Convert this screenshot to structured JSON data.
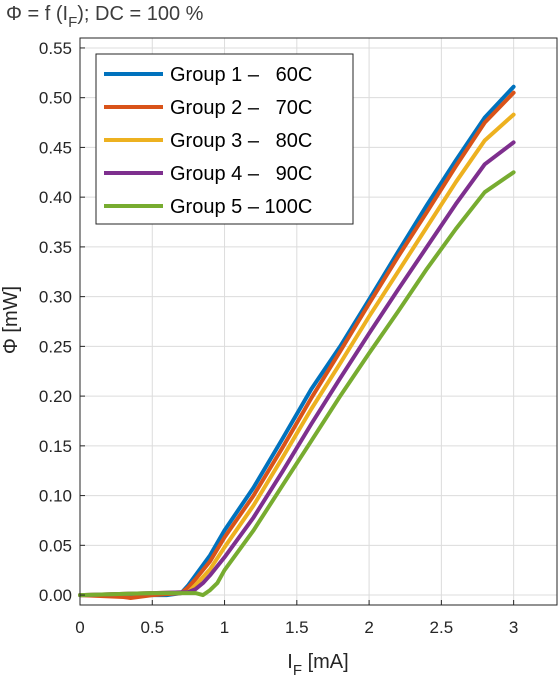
{
  "chart_data": {
    "type": "line",
    "title": {
      "main": "Φ = f (I",
      "sub": "F",
      "rest": "); DC = 100 %"
    },
    "xlabel": {
      "main": "I",
      "sub": "F",
      "rest": " [mA]"
    },
    "ylabel": "Φ [mW]",
    "xlim": [
      0,
      3.3
    ],
    "ylim": [
      -0.01,
      0.56
    ],
    "xticks": [
      0,
      0.5,
      1,
      1.5,
      2,
      2.5,
      3
    ],
    "xtick_labels": [
      "0",
      "0.5",
      "1",
      "1.5",
      "2",
      "2.5",
      "3"
    ],
    "yticks": [
      0,
      0.05,
      0.1,
      0.15,
      0.2,
      0.25,
      0.3,
      0.35,
      0.4,
      0.45,
      0.5,
      0.55
    ],
    "ytick_labels": [
      "0.00",
      "0.05",
      "0.10",
      "0.15",
      "0.20",
      "0.25",
      "0.30",
      "0.35",
      "0.40",
      "0.45",
      "0.50",
      "0.55"
    ],
    "grid": true,
    "legend_position": "top-left",
    "series": [
      {
        "name": "Group 1 –   60C",
        "color": "#0072BD",
        "x": [
          0,
          0.3,
          0.6,
          0.7,
          0.75,
          0.8,
          0.9,
          1.0,
          1.2,
          1.4,
          1.6,
          1.8,
          2.0,
          2.2,
          2.4,
          2.6,
          2.8,
          3.0
        ],
        "y": [
          0,
          0,
          0,
          0.002,
          0.01,
          0.02,
          0.04,
          0.065,
          0.108,
          0.157,
          0.207,
          0.25,
          0.297,
          0.345,
          0.392,
          0.437,
          0.48,
          0.511
        ]
      },
      {
        "name": "Group 2 –   70C",
        "color": "#D95319",
        "x": [
          0,
          0.3,
          0.35,
          0.5,
          0.7,
          0.75,
          0.8,
          0.9,
          1.0,
          1.2,
          1.4,
          1.6,
          1.8,
          2.0,
          2.2,
          2.4,
          2.6,
          2.8,
          3.0
        ],
        "y": [
          0,
          -0.002,
          -0.003,
          0,
          0.002,
          0.008,
          0.016,
          0.034,
          0.058,
          0.1,
          0.148,
          0.198,
          0.245,
          0.293,
          0.34,
          0.385,
          0.431,
          0.475,
          0.505
        ]
      },
      {
        "name": "Group 3 –   80C",
        "color": "#EDB120",
        "x": [
          0,
          0.5,
          0.75,
          0.8,
          0.9,
          1.0,
          1.2,
          1.4,
          1.6,
          1.8,
          2.0,
          2.2,
          2.4,
          2.6,
          2.8,
          3.0
        ],
        "y": [
          0,
          0.002,
          0.003,
          0.01,
          0.026,
          0.048,
          0.09,
          0.138,
          0.187,
          0.233,
          0.28,
          0.325,
          0.37,
          0.415,
          0.457,
          0.483
        ]
      },
      {
        "name": "Group 4 –   90C",
        "color": "#7E2F8E",
        "x": [
          0,
          0.5,
          0.75,
          0.8,
          0.85,
          0.9,
          1.0,
          1.2,
          1.4,
          1.6,
          1.8,
          2.0,
          2.2,
          2.4,
          2.6,
          2.8,
          3.0
        ],
        "y": [
          0,
          0.002,
          0.003,
          0.006,
          0.012,
          0.02,
          0.038,
          0.078,
          0.124,
          0.172,
          0.218,
          0.263,
          0.307,
          0.35,
          0.393,
          0.433,
          0.455
        ]
      },
      {
        "name": "Group 5 – 100C",
        "color": "#77AC30",
        "x": [
          0,
          0.5,
          0.8,
          0.85,
          0.9,
          0.95,
          1.0,
          1.2,
          1.4,
          1.6,
          1.8,
          2.0,
          2.2,
          2.4,
          2.6,
          2.8,
          3.0
        ],
        "y": [
          0,
          0.002,
          0.002,
          0.0,
          0.005,
          0.012,
          0.025,
          0.065,
          0.11,
          0.155,
          0.2,
          0.243,
          0.285,
          0.328,
          0.368,
          0.405,
          0.425
        ]
      }
    ]
  }
}
